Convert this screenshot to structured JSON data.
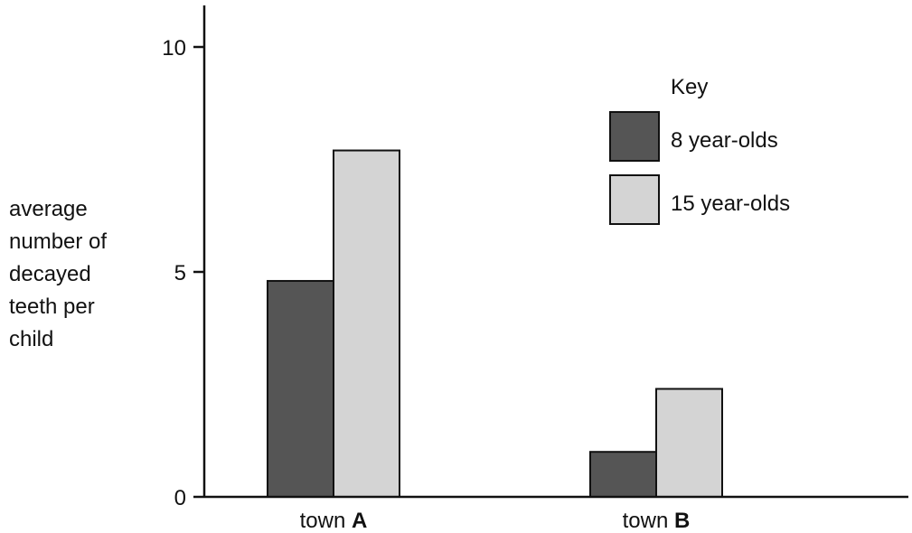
{
  "chart_data": {
    "type": "bar",
    "categories": [
      {
        "prefix": "town ",
        "bold": "A"
      },
      {
        "prefix": "town ",
        "bold": "B"
      }
    ],
    "series": [
      {
        "name": "8 year-olds",
        "color": "#555555",
        "values": [
          4.8,
          1.0
        ]
      },
      {
        "name": "15 year-olds",
        "color": "#d4d4d4",
        "values": [
          7.7,
          2.4
        ]
      }
    ],
    "ylabel_lines": [
      "average",
      "number of",
      "decayed",
      "teeth per",
      "child"
    ],
    "yticks": [
      "0",
      "5",
      "10"
    ],
    "ylim": [
      0,
      11
    ],
    "legend": {
      "title": "Key",
      "position": "top-right"
    },
    "grid": false
  }
}
